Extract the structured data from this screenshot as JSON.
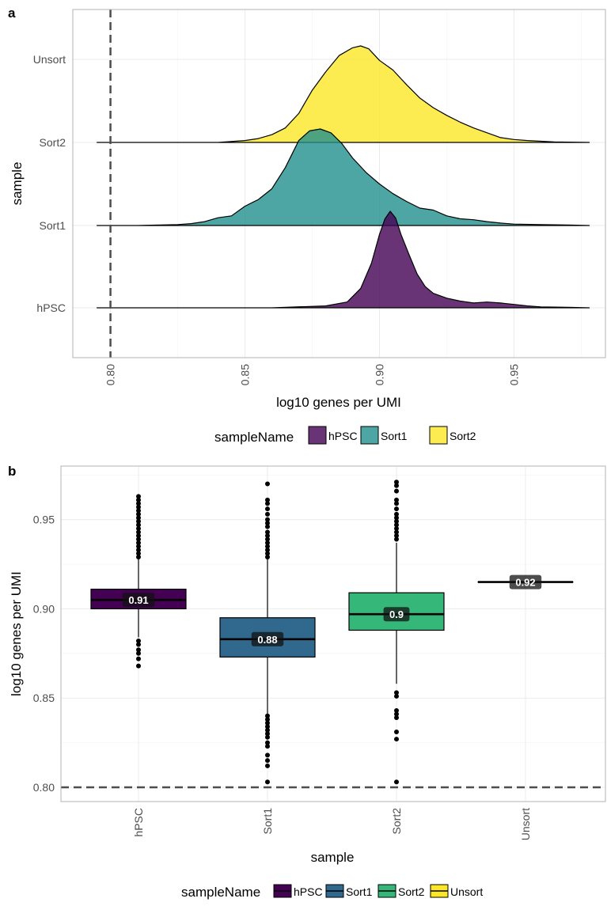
{
  "chart_data": [
    {
      "panel": "a",
      "type": "area",
      "xlabel": "log10 genes per UMI",
      "ylabel": "sample",
      "xlim": [
        0.786,
        0.984
      ],
      "x_ticks": [
        "0.80",
        "0.85",
        "0.90",
        "0.95"
      ],
      "y_categories": [
        "hPSC",
        "Sort1",
        "Sort2",
        "Unsort"
      ],
      "reference_line_x": 0.8,
      "grid": true,
      "legend": {
        "title": "sampleName",
        "position": "bottom"
      },
      "series": [
        {
          "name": "hPSC",
          "row": "hPSC",
          "color": "#440154",
          "x": [
            0.795,
            0.86,
            0.88,
            0.888,
            0.893,
            0.897,
            0.9,
            0.902,
            0.904,
            0.906,
            0.908,
            0.911,
            0.914,
            0.917,
            0.92,
            0.925,
            0.93,
            0.935,
            0.94,
            0.945,
            0.95,
            0.955,
            0.96,
            0.97,
            0.978
          ],
          "density": [
            0.0,
            0.0,
            0.02,
            0.06,
            0.2,
            0.46,
            0.76,
            0.92,
            1.0,
            0.93,
            0.76,
            0.55,
            0.35,
            0.22,
            0.15,
            0.1,
            0.07,
            0.05,
            0.06,
            0.05,
            0.035,
            0.02,
            0.01,
            0.005,
            0.0
          ]
        },
        {
          "name": "Sort1",
          "row": "Sort1",
          "color": "#21908C",
          "x": [
            0.795,
            0.81,
            0.825,
            0.83,
            0.835,
            0.84,
            0.845,
            0.85,
            0.855,
            0.86,
            0.865,
            0.87,
            0.874,
            0.878,
            0.882,
            0.886,
            0.89,
            0.895,
            0.9,
            0.905,
            0.91,
            0.915,
            0.92,
            0.925,
            0.93,
            0.935,
            0.94,
            0.945,
            0.95,
            0.96,
            0.97,
            0.978
          ],
          "density": [
            0.0,
            0.0,
            0.01,
            0.02,
            0.04,
            0.08,
            0.1,
            0.2,
            0.27,
            0.38,
            0.6,
            0.88,
            0.98,
            1.0,
            0.96,
            0.85,
            0.7,
            0.55,
            0.43,
            0.33,
            0.25,
            0.18,
            0.16,
            0.1,
            0.07,
            0.06,
            0.04,
            0.025,
            0.015,
            0.01,
            0.005,
            0.0
          ]
        },
        {
          "name": "Sort2",
          "row": "Sort2",
          "color": "#FDE725",
          "x": [
            0.795,
            0.84,
            0.85,
            0.855,
            0.86,
            0.865,
            0.87,
            0.875,
            0.88,
            0.885,
            0.89,
            0.893,
            0.896,
            0.9,
            0.905,
            0.91,
            0.915,
            0.92,
            0.925,
            0.93,
            0.935,
            0.94,
            0.945,
            0.95,
            0.955,
            0.965,
            0.978
          ],
          "density": [
            0.0,
            0.0,
            0.02,
            0.04,
            0.08,
            0.15,
            0.3,
            0.54,
            0.73,
            0.9,
            0.98,
            1.0,
            0.97,
            0.85,
            0.75,
            0.6,
            0.46,
            0.36,
            0.28,
            0.21,
            0.15,
            0.1,
            0.05,
            0.03,
            0.02,
            0.005,
            0.0
          ]
        }
      ]
    },
    {
      "panel": "b",
      "type": "box",
      "xlabel": "sample",
      "ylabel": "log10 genes per UMI",
      "ylim": [
        0.792,
        0.98
      ],
      "y_ticks": [
        "0.80",
        "0.85",
        "0.90",
        "0.95"
      ],
      "categories": [
        "hPSC",
        "Sort1",
        "Sort2",
        "Unsort"
      ],
      "reference_line_y": 0.8,
      "grid": true,
      "legend": {
        "title": "sampleName",
        "position": "bottom"
      },
      "series": [
        {
          "name": "hPSC",
          "color": "#440154",
          "q1": 0.9,
          "median": 0.905,
          "q3": 0.911,
          "whisker_low": 0.884,
          "whisker_high": 0.928,
          "median_label": "0.91",
          "outliers": [
            0.963,
            0.961,
            0.959,
            0.957,
            0.955,
            0.953,
            0.951,
            0.949,
            0.947,
            0.945,
            0.943,
            0.941,
            0.939,
            0.937,
            0.935,
            0.933,
            0.931,
            0.929,
            0.882,
            0.88,
            0.877,
            0.875,
            0.872,
            0.868
          ]
        },
        {
          "name": "Sort1",
          "color": "#31688E",
          "q1": 0.873,
          "median": 0.883,
          "q3": 0.895,
          "whisker_low": 0.841,
          "whisker_high": 0.928,
          "median_label": "0.88",
          "outliers": [
            0.97,
            0.961,
            0.959,
            0.956,
            0.953,
            0.95,
            0.948,
            0.946,
            0.943,
            0.941,
            0.939,
            0.937,
            0.935,
            0.933,
            0.931,
            0.929,
            0.84,
            0.838,
            0.836,
            0.834,
            0.832,
            0.83,
            0.828,
            0.825,
            0.823,
            0.818,
            0.815,
            0.812,
            0.803
          ]
        },
        {
          "name": "Sort2",
          "color": "#35B779",
          "q1": 0.888,
          "median": 0.897,
          "q3": 0.909,
          "whisker_low": 0.858,
          "whisker_high": 0.937,
          "median_label": "0.9",
          "outliers": [
            0.971,
            0.969,
            0.966,
            0.961,
            0.959,
            0.956,
            0.953,
            0.951,
            0.949,
            0.947,
            0.945,
            0.943,
            0.941,
            0.939,
            0.853,
            0.851,
            0.843,
            0.841,
            0.839,
            0.831,
            0.827,
            0.803
          ]
        },
        {
          "name": "Unsort",
          "color": "#FDE725",
          "q1": 0.915,
          "median": 0.915,
          "q3": 0.915,
          "whisker_low": 0.915,
          "whisker_high": 0.915,
          "median_label": "0.92",
          "outliers": []
        }
      ]
    }
  ],
  "panels": {
    "a": {
      "label": "a"
    },
    "b": {
      "label": "b"
    }
  }
}
